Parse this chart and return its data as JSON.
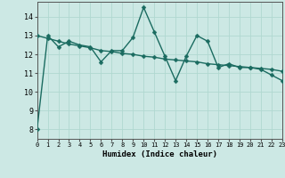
{
  "xlabel": "Humidex (Indice chaleur)",
  "bg_color": "#cce8e4",
  "line_color": "#1a6b60",
  "grid_color": "#b0d8d0",
  "x_data": [
    0,
    1,
    2,
    3,
    4,
    5,
    6,
    7,
    8,
    9,
    10,
    11,
    12,
    13,
    14,
    15,
    16,
    17,
    18,
    19,
    20,
    21,
    22,
    23
  ],
  "y_data1": [
    8.0,
    13.0,
    12.4,
    12.7,
    12.5,
    12.4,
    11.6,
    12.2,
    12.2,
    12.9,
    14.5,
    13.2,
    11.9,
    10.6,
    11.9,
    13.0,
    12.7,
    11.3,
    11.5,
    11.3,
    11.3,
    11.2,
    10.9,
    10.6
  ],
  "y_data2": [
    13.0,
    12.85,
    12.7,
    12.55,
    12.45,
    12.35,
    12.2,
    12.15,
    12.05,
    12.0,
    11.9,
    11.85,
    11.75,
    11.7,
    11.65,
    11.6,
    11.5,
    11.45,
    11.4,
    11.35,
    11.3,
    11.25,
    11.2,
    11.1
  ],
  "ylim": [
    7.5,
    14.8
  ],
  "xlim": [
    0,
    23
  ],
  "yticks": [
    8,
    9,
    10,
    11,
    12,
    13,
    14
  ],
  "xticks": [
    0,
    1,
    2,
    3,
    4,
    5,
    6,
    7,
    8,
    9,
    10,
    11,
    12,
    13,
    14,
    15,
    16,
    17,
    18,
    19,
    20,
    21,
    22,
    23
  ],
  "marker_size": 2.5,
  "linewidth": 1.0
}
